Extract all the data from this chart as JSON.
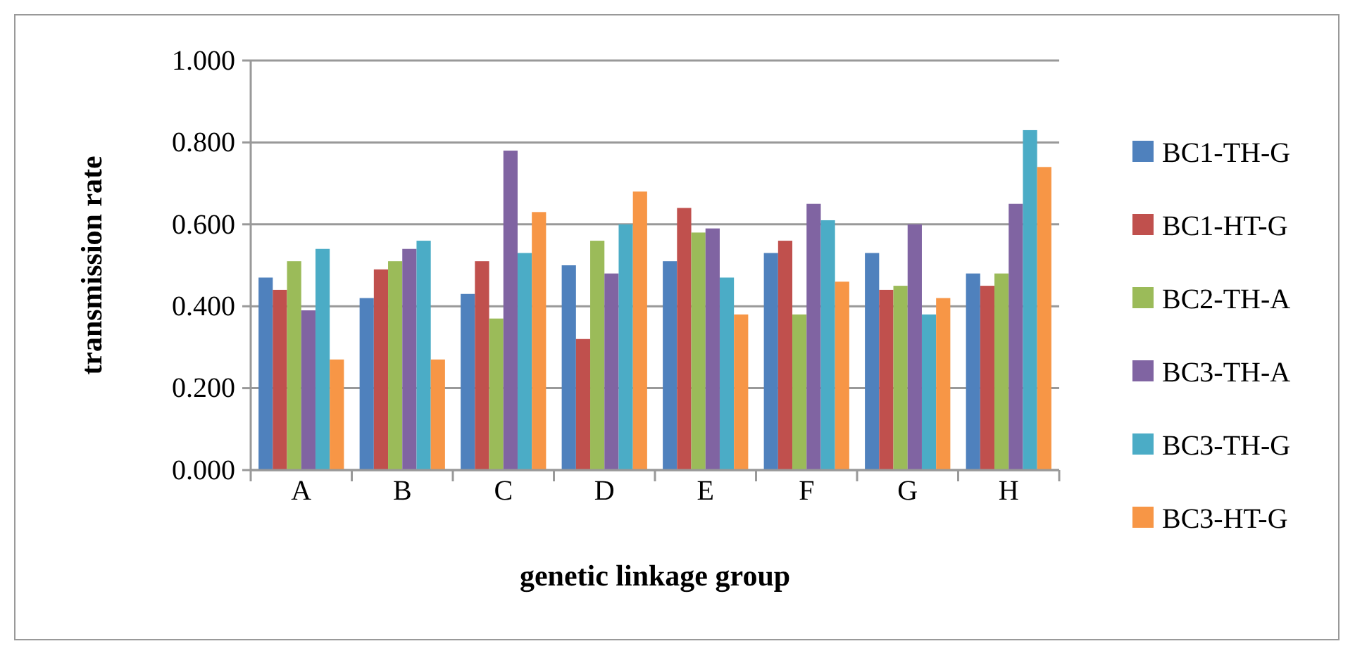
{
  "chart_data": {
    "type": "bar",
    "xlabel": "genetic linkage group",
    "ylabel": "transmission rate",
    "categories": [
      "A",
      "B",
      "C",
      "D",
      "E",
      "F",
      "G",
      "H"
    ],
    "series": [
      {
        "name": "BC1-TH-G",
        "color": "#4f81bd",
        "values": [
          0.47,
          0.42,
          0.43,
          0.5,
          0.51,
          0.53,
          0.53,
          0.48
        ]
      },
      {
        "name": "BC1-HT-G",
        "color": "#c0504d",
        "values": [
          0.44,
          0.49,
          0.51,
          0.32,
          0.64,
          0.56,
          0.44,
          0.45
        ]
      },
      {
        "name": "BC2-TH-A",
        "color": "#9bbb59",
        "values": [
          0.51,
          0.51,
          0.37,
          0.56,
          0.58,
          0.38,
          0.45,
          0.48
        ]
      },
      {
        "name": "BC3-TH-A",
        "color": "#8064a2",
        "values": [
          0.39,
          0.54,
          0.78,
          0.48,
          0.59,
          0.65,
          0.6,
          0.65
        ]
      },
      {
        "name": "BC3-TH-G",
        "color": "#4bacc6",
        "values": [
          0.54,
          0.56,
          0.53,
          0.6,
          0.47,
          0.61,
          0.38,
          0.83
        ]
      },
      {
        "name": "BC3-HT-G",
        "color": "#f79646",
        "values": [
          0.27,
          0.27,
          0.63,
          0.68,
          0.38,
          0.46,
          0.42,
          0.74
        ]
      }
    ],
    "ylim": [
      0,
      1
    ],
    "yticks": [
      {
        "value": 0,
        "label": "0.000"
      },
      {
        "value": 0.2,
        "label": "0.200"
      },
      {
        "value": 0.4,
        "label": "0.400"
      },
      {
        "value": 0.6,
        "label": "0.600"
      },
      {
        "value": 0.8,
        "label": "0.800"
      },
      {
        "value": 1,
        "label": "1.000"
      }
    ],
    "grid": "y",
    "legend": "right"
  }
}
